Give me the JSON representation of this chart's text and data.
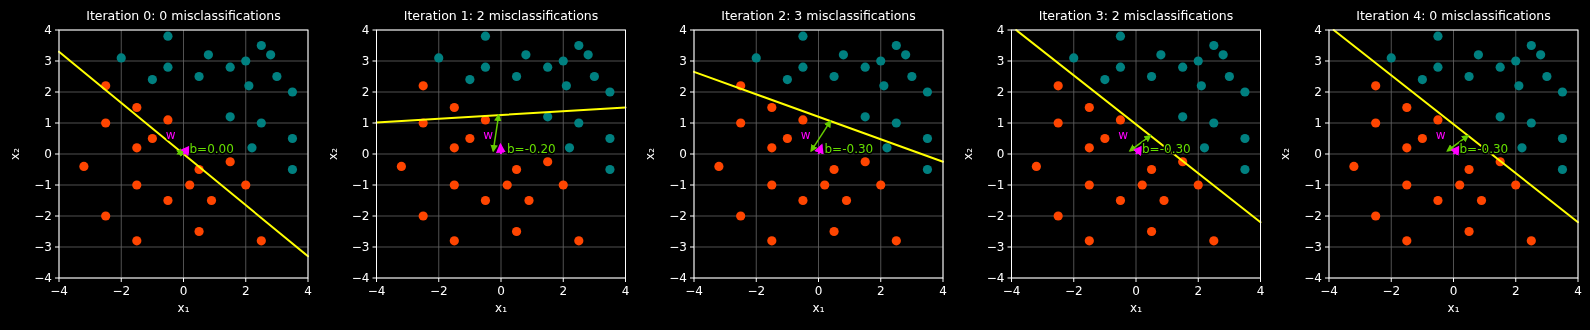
{
  "chart_data": [
    {
      "type": "scatter",
      "title": "Iteration 0: 0 misclassifications",
      "xlabel": "x₁",
      "ylabel": "x₂",
      "xlim": [
        -4,
        4
      ],
      "ylim": [
        -4,
        4
      ],
      "xticks": [
        -4,
        -2,
        0,
        2,
        4
      ],
      "yticks": [
        -4,
        -3,
        -2,
        -1,
        0,
        1,
        2,
        3,
        4
      ],
      "grid": true,
      "series": [
        {
          "color": "#008080",
          "x": [
            -2,
            -0.5,
            -0.5,
            -1,
            0.8,
            0.5,
            1.5,
            2,
            2.5,
            2.8,
            3,
            2.1,
            3.5,
            1.5,
            2.5,
            3.5,
            2.2,
            3.5
          ],
          "values": [
            3.1,
            3.8,
            2.8,
            2.4,
            3.2,
            2.5,
            2.8,
            3,
            3.5,
            3.2,
            2.5,
            2.2,
            2,
            1.2,
            1,
            0.5,
            0.2,
            -0.5
          ]
        },
        {
          "color": "#ff4500",
          "x": [
            -2.5,
            -1.5,
            -2.5,
            -0.5,
            -1,
            -1.5,
            -3.2,
            1.5,
            0.5,
            -1.5,
            0.2,
            2,
            -0.5,
            0.9,
            -2.5,
            0.5,
            -1.5,
            2.5
          ],
          "values": [
            2.2,
            1.5,
            1,
            1.1,
            0.5,
            0.2,
            -0.4,
            -0.25,
            -0.5,
            -1,
            -1,
            -1,
            -1.5,
            -1.5,
            -2,
            -2.5,
            -2.8,
            -2.8
          ]
        },
        {
          "type": "line",
          "color": "#ffff00",
          "x": [
            -4,
            4
          ],
          "values": [
            3.3,
            -3.3
          ]
        }
      ],
      "annotations": [
        "w",
        "b=0.00"
      ]
    },
    {
      "type": "scatter",
      "title": "Iteration 1: 2 misclassifications",
      "xlabel": "x₁",
      "ylabel": "x₂",
      "xlim": [
        -4,
        4
      ],
      "ylim": [
        -4,
        4
      ],
      "xticks": [
        -4,
        -2,
        0,
        2,
        4
      ],
      "yticks": [
        -4,
        -3,
        -2,
        -1,
        0,
        1,
        2,
        3,
        4
      ],
      "grid": true,
      "series": [
        {
          "color": "#008080",
          "x": [
            -2,
            -0.5,
            -0.5,
            -1,
            0.8,
            0.5,
            1.5,
            2,
            2.5,
            2.8,
            3,
            2.1,
            3.5,
            1.5,
            2.5,
            3.5,
            2.2,
            3.5
          ],
          "values": [
            3.1,
            3.8,
            2.8,
            2.4,
            3.2,
            2.5,
            2.8,
            3,
            3.5,
            3.2,
            2.5,
            2.2,
            2,
            1.2,
            1,
            0.5,
            0.2,
            -0.5
          ]
        },
        {
          "color": "#ff4500",
          "x": [
            -2.5,
            -1.5,
            -2.5,
            -0.5,
            -1,
            -1.5,
            -3.2,
            1.5,
            0.5,
            -1.5,
            0.2,
            2,
            -0.5,
            0.9,
            -2.5,
            0.5,
            -1.5,
            2.5
          ],
          "values": [
            2.2,
            1.5,
            1,
            1.1,
            0.5,
            0.2,
            -0.4,
            -0.25,
            -0.5,
            -1,
            -1,
            -1,
            -1.5,
            -1.5,
            -2,
            -2.5,
            -2.8,
            -2.8
          ]
        },
        {
          "type": "line",
          "color": "#ffff00",
          "x": [
            -4,
            4
          ],
          "values": [
            1.02,
            1.5
          ]
        }
      ],
      "annotations": [
        "w",
        "b=-0.20"
      ]
    },
    {
      "type": "scatter",
      "title": "Iteration 2: 3 misclassifications",
      "xlabel": "x₁",
      "ylabel": "x₂",
      "xlim": [
        -4,
        4
      ],
      "ylim": [
        -4,
        4
      ],
      "xticks": [
        -4,
        -2,
        0,
        2,
        4
      ],
      "yticks": [
        -4,
        -3,
        -2,
        -1,
        0,
        1,
        2,
        3,
        4
      ],
      "grid": true,
      "series": [
        {
          "color": "#008080",
          "x": [
            -2,
            -0.5,
            -0.5,
            -1,
            0.8,
            0.5,
            1.5,
            2,
            2.5,
            2.8,
            3,
            2.1,
            3.5,
            1.5,
            2.5,
            3.5,
            2.2,
            3.5
          ],
          "values": [
            3.1,
            3.8,
            2.8,
            2.4,
            3.2,
            2.5,
            2.8,
            3,
            3.5,
            3.2,
            2.5,
            2.2,
            2,
            1.2,
            1,
            0.5,
            0.2,
            -0.5
          ]
        },
        {
          "color": "#ff4500",
          "x": [
            -2.5,
            -1.5,
            -2.5,
            -0.5,
            -1,
            -1.5,
            -3.2,
            1.5,
            0.5,
            -1.5,
            0.2,
            2,
            -0.5,
            0.9,
            -2.5,
            0.5,
            -1.5,
            2.5
          ],
          "values": [
            2.2,
            1.5,
            1,
            1.1,
            0.5,
            0.2,
            -0.4,
            -0.25,
            -0.5,
            -1,
            -1,
            -1,
            -1.5,
            -1.5,
            -2,
            -2.5,
            -2.8,
            -2.8
          ]
        },
        {
          "type": "line",
          "color": "#ffff00",
          "x": [
            -4,
            4
          ],
          "values": [
            2.65,
            -0.25
          ]
        }
      ],
      "annotations": [
        "w",
        "b=-0.30"
      ]
    },
    {
      "type": "scatter",
      "title": "Iteration 3: 2 misclassifications",
      "xlabel": "x₁",
      "ylabel": "x₂",
      "xlim": [
        -4,
        4
      ],
      "ylim": [
        -4,
        4
      ],
      "xticks": [
        -4,
        -2,
        0,
        2,
        4
      ],
      "yticks": [
        -4,
        -3,
        -2,
        -1,
        0,
        1,
        2,
        3,
        4
      ],
      "grid": true,
      "series": [
        {
          "color": "#008080",
          "x": [
            -2,
            -0.5,
            -0.5,
            -1,
            0.8,
            0.5,
            1.5,
            2,
            2.5,
            2.8,
            3,
            2.1,
            3.5,
            1.5,
            2.5,
            3.5,
            2.2,
            3.5
          ],
          "values": [
            3.1,
            3.8,
            2.8,
            2.4,
            3.2,
            2.5,
            2.8,
            3,
            3.5,
            3.2,
            2.5,
            2.2,
            2,
            1.2,
            1,
            0.5,
            0.2,
            -0.5
          ]
        },
        {
          "color": "#ff4500",
          "x": [
            -2.5,
            -1.5,
            -2.5,
            -0.5,
            -1,
            -1.5,
            -3.2,
            1.5,
            0.5,
            -1.5,
            0.2,
            2,
            -0.5,
            0.9,
            -2.5,
            0.5,
            -1.5,
            2.5
          ],
          "values": [
            2.2,
            1.5,
            1,
            1.1,
            0.5,
            0.2,
            -0.4,
            -0.25,
            -0.5,
            -1,
            -1,
            -1,
            -1.5,
            -1.5,
            -2,
            -2.5,
            -2.8,
            -2.8
          ]
        },
        {
          "type": "line",
          "color": "#ffff00",
          "x": [
            -3.85,
            4
          ],
          "values": [
            4,
            -2.2
          ]
        }
      ],
      "annotations": [
        "w",
        "b=-0.30"
      ]
    },
    {
      "type": "scatter",
      "title": "Iteration 4: 0 misclassifications",
      "xlabel": "x₁",
      "ylabel": "x₂",
      "xlim": [
        -4,
        4
      ],
      "ylim": [
        -4,
        4
      ],
      "xticks": [
        -4,
        -2,
        0,
        2,
        4
      ],
      "yticks": [
        -4,
        -3,
        -2,
        -1,
        0,
        1,
        2,
        3,
        4
      ],
      "grid": true,
      "series": [
        {
          "color": "#008080",
          "x": [
            -2,
            -0.5,
            -0.5,
            -1,
            0.8,
            0.5,
            1.5,
            2,
            2.5,
            2.8,
            3,
            2.1,
            3.5,
            1.5,
            2.5,
            3.5,
            2.2,
            3.5
          ],
          "values": [
            3.1,
            3.8,
            2.8,
            2.4,
            3.2,
            2.5,
            2.8,
            3,
            3.5,
            3.2,
            2.5,
            2.2,
            2,
            1.2,
            1,
            0.5,
            0.2,
            -0.5
          ]
        },
        {
          "color": "#ff4500",
          "x": [
            -2.5,
            -1.5,
            -2.5,
            -0.5,
            -1,
            -1.5,
            -3.2,
            1.5,
            0.5,
            -1.5,
            0.2,
            2,
            -0.5,
            0.9,
            -2.5,
            0.5,
            -1.5,
            2.5
          ],
          "values": [
            2.2,
            1.5,
            1,
            1.1,
            0.5,
            0.2,
            -0.4,
            -0.25,
            -0.5,
            -1,
            -1,
            -1,
            -1.5,
            -1.5,
            -2,
            -2.5,
            -2.8,
            -2.8
          ]
        },
        {
          "type": "line",
          "color": "#ffff00",
          "x": [
            -3.85,
            4
          ],
          "values": [
            4,
            -2.2
          ]
        }
      ],
      "annotations": [
        "w",
        "b=-0.30"
      ]
    }
  ]
}
